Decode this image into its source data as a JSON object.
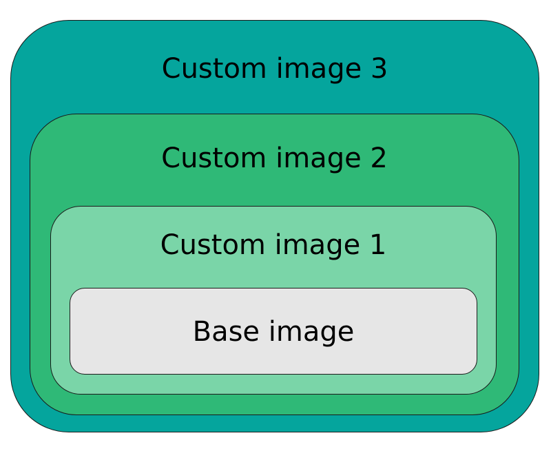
{
  "layers": [
    {
      "label": "Custom image 3",
      "fill": "#05a59d"
    },
    {
      "label": "Custom image 2",
      "fill": "#2fb977"
    },
    {
      "label": "Custom image 1",
      "fill": "#7ad5a8"
    },
    {
      "label": "Base image",
      "fill": "#e6e6e6"
    }
  ]
}
